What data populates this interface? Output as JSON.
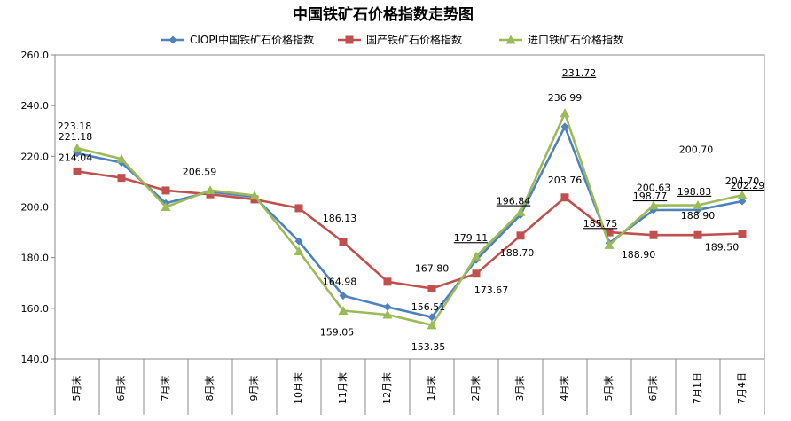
{
  "chart_data": {
    "type": "line",
    "title": "中国铁矿石价格指数走势图",
    "xlabel": "",
    "ylabel": "",
    "ylim": [
      140,
      260
    ],
    "ytick_step": 20,
    "yticks": [
      "140.0",
      "160.0",
      "180.0",
      "200.0",
      "220.0",
      "240.0",
      "260.0"
    ],
    "categories": [
      "5月末",
      "6月末",
      "7月末",
      "8月末",
      "9月末",
      "10月末",
      "11月末",
      "12月末",
      "1月末",
      "2月末",
      "3月末",
      "4月末",
      "5月末",
      "6月末",
      "7月1日",
      "7月4日"
    ],
    "legend_position": "top",
    "grid": false,
    "series": [
      {
        "name": "CIOPI中国铁矿石价格指数",
        "color": "#4F81BD",
        "marker": "diamond",
        "values": [
          221.18,
          217.5,
          201.5,
          206.0,
          204.0,
          186.5,
          164.98,
          160.5,
          156.51,
          179.11,
          196.84,
          231.72,
          185.75,
          198.77,
          198.83,
          202.29
        ],
        "labels": [
          "221.18",
          null,
          null,
          null,
          null,
          null,
          "164.98",
          null,
          "156.51",
          "179.11",
          "196.84",
          "231.72",
          "185.75",
          "198.77",
          "198.83",
          "202.29"
        ]
      },
      {
        "name": "国产铁矿石价格指数",
        "color": "#C0504D",
        "marker": "square",
        "values": [
          214.04,
          211.5,
          206.5,
          205.0,
          203.0,
          199.5,
          186.13,
          170.5,
          167.8,
          173.67,
          188.7,
          203.76,
          190.0,
          188.9,
          188.9,
          189.5
        ],
        "labels": [
          "214.04",
          null,
          null,
          null,
          null,
          null,
          "186.13",
          null,
          "167.80",
          "173.67",
          "188.70",
          "203.76",
          null,
          "188.90",
          "188.90",
          "189.50"
        ]
      },
      {
        "name": "进口铁矿石价格指数",
        "color": "#9BBB59",
        "marker": "triangle",
        "values": [
          223.18,
          219.0,
          200.0,
          206.59,
          204.5,
          182.5,
          159.05,
          157.5,
          153.35,
          180.5,
          198.0,
          236.99,
          185.0,
          200.63,
          200.7,
          204.7
        ],
        "labels": [
          "223.18",
          null,
          null,
          "206.59",
          null,
          null,
          "159.05",
          null,
          "153.35",
          null,
          null,
          "236.99",
          null,
          "200.63",
          "200.70",
          "204.70"
        ]
      }
    ]
  }
}
